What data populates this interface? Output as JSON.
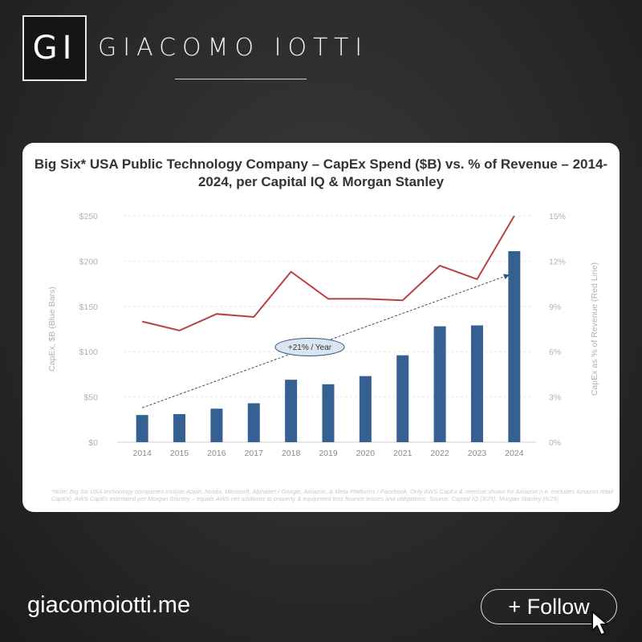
{
  "brand": {
    "logo_text": "GI",
    "name": "GIACOMO IOTTI"
  },
  "footer": {
    "site": "giacomoiotti.me",
    "follow_label": "+ Follow"
  },
  "colors": {
    "bar": "#365f92",
    "line": "#b84040",
    "trend": "#35507a",
    "background": "#2a2a2a"
  },
  "icons": {
    "cursor": "mouse-cursor-icon"
  },
  "chart_data": {
    "type": "bar",
    "title": "Big Six* USA Public Technology Company – CapEx Spend ($B) vs. % of Revenue – 2014-2024, per Capital IQ & Morgan Stanley",
    "categories": [
      "2014",
      "2015",
      "2016",
      "2017",
      "2018",
      "2019",
      "2020",
      "2021",
      "2022",
      "2023",
      "2024"
    ],
    "series": [
      {
        "name": "CapEx, $B (Blue Bars)",
        "type": "bar",
        "axis": "left",
        "values": [
          30,
          31,
          37,
          43,
          69,
          64,
          73,
          96,
          128,
          129,
          211
        ]
      },
      {
        "name": "CapEx as % of Revenue (Red Line)",
        "type": "line",
        "axis": "right",
        "values": [
          8.0,
          7.4,
          8.5,
          8.3,
          11.3,
          9.5,
          9.5,
          9.4,
          11.7,
          10.8,
          15.0
        ]
      }
    ],
    "ylabel": "CapEx, $B (Blue Bars)",
    "ylabel_right": "CapEx as % of Revenue (Red Line)",
    "ylim": [
      0,
      250
    ],
    "ylim_right": [
      0,
      15
    ],
    "yticks": [
      "$0",
      "$50",
      "$100",
      "$150",
      "$200",
      "$250"
    ],
    "yticks_right": [
      "0%",
      "3%",
      "6%",
      "9%",
      "12%",
      "15%"
    ],
    "trend": {
      "label": "+21% / Year",
      "from": [
        "2014",
        38
      ],
      "to": [
        "2024",
        185
      ]
    },
    "grid": true,
    "note": "*Note: Big Six USA technology companies include Apple, Nvidia, Microsoft, Alphabet / Google, Amazon, & Meta Platforms / Facebook. Only AWS CapEx & revenue shown for Amazon (i.e. excludes Amazon retail CapEx). AWS CapEx estimated per Morgan Stanley – equals AWS net additions to property & equipment less finance leases and obligations. Source: Capital IQ (3/25), Morgan Stanley (5/25)"
  }
}
